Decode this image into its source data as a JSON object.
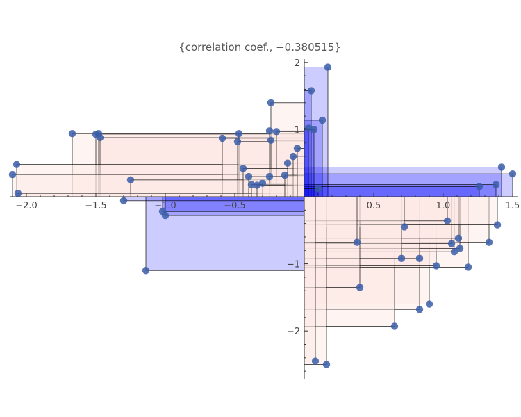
{
  "chart_data": {
    "type": "scatter",
    "title": "{correlation coef., −0.380515}",
    "xlabel": "",
    "ylabel": "",
    "xlim": [
      -2.15,
      1.52
    ],
    "ylim": [
      -2.72,
      2.05
    ],
    "grid": false,
    "x_ticks": [
      {
        "value": -2.0,
        "label": "−2.0"
      },
      {
        "value": -1.5,
        "label": "−1.5"
      },
      {
        "value": -1.0,
        "label": "−1.0"
      },
      {
        "value": -0.5,
        "label": "−0.5"
      },
      {
        "value": 0.5,
        "label": "0.5"
      },
      {
        "value": 1.0,
        "label": "1.0"
      },
      {
        "value": 1.5,
        "label": "1.5"
      }
    ],
    "y_ticks": [
      {
        "value": -2,
        "label": "−2"
      },
      {
        "value": -1,
        "label": "−1"
      },
      {
        "value": 1,
        "label": "1"
      },
      {
        "value": 2,
        "label": "2"
      }
    ],
    "point_color": "#3a5da8",
    "rect_positive_product_color": "#0000ff",
    "rect_negative_product_color": "#fde8e4",
    "points": [
      {
        "x": -2.1,
        "y": 0.33
      },
      {
        "x": -2.07,
        "y": 0.48
      },
      {
        "x": -2.06,
        "y": 0.05
      },
      {
        "x": -1.67,
        "y": 0.94
      },
      {
        "x": -1.5,
        "y": 0.93
      },
      {
        "x": -1.48,
        "y": 0.94
      },
      {
        "x": -1.47,
        "y": 0.88
      },
      {
        "x": -1.3,
        "y": -0.06
      },
      {
        "x": -1.25,
        "y": 0.25
      },
      {
        "x": -0.59,
        "y": 0.87
      },
      {
        "x": -0.47,
        "y": 0.94
      },
      {
        "x": -0.48,
        "y": 0.82
      },
      {
        "x": -0.44,
        "y": 0.42
      },
      {
        "x": -0.4,
        "y": 0.3
      },
      {
        "x": -0.38,
        "y": 0.18
      },
      {
        "x": -0.34,
        "y": 0.17
      },
      {
        "x": -0.3,
        "y": 0.2
      },
      {
        "x": -0.25,
        "y": 0.3
      },
      {
        "x": -0.24,
        "y": 1.4
      },
      {
        "x": -0.25,
        "y": 0.98
      },
      {
        "x": -0.24,
        "y": 0.84
      },
      {
        "x": -0.2,
        "y": 0.97
      },
      {
        "x": -0.14,
        "y": 0.32
      },
      {
        "x": -0.12,
        "y": 0.5
      },
      {
        "x": -0.08,
        "y": 0.6
      },
      {
        "x": -0.05,
        "y": 0.72
      },
      {
        "x": 0.03,
        "y": 1.02
      },
      {
        "x": 0.05,
        "y": 1.58
      },
      {
        "x": 0.07,
        "y": 1.0
      },
      {
        "x": 0.1,
        "y": 0.12
      },
      {
        "x": 0.13,
        "y": 1.14
      },
      {
        "x": 0.17,
        "y": 1.93
      },
      {
        "x": 1.26,
        "y": 0.15
      },
      {
        "x": 1.38,
        "y": 0.18
      },
      {
        "x": 1.42,
        "y": 0.44
      },
      {
        "x": 1.5,
        "y": 0.34
      },
      {
        "x": -1.02,
        "y": -0.22
      },
      {
        "x": -1.0,
        "y": -0.28
      },
      {
        "x": -1.14,
        "y": -1.1
      },
      {
        "x": 0.08,
        "y": -2.45
      },
      {
        "x": 0.16,
        "y": -2.5
      },
      {
        "x": 0.4,
        "y": -1.35
      },
      {
        "x": 0.38,
        "y": -0.68
      },
      {
        "x": 0.65,
        "y": -1.93
      },
      {
        "x": 0.7,
        "y": -0.92
      },
      {
        "x": 0.72,
        "y": -0.45
      },
      {
        "x": 0.83,
        "y": -0.92
      },
      {
        "x": 0.83,
        "y": -1.68
      },
      {
        "x": 0.9,
        "y": -1.6
      },
      {
        "x": 0.95,
        "y": -1.03
      },
      {
        "x": 1.03,
        "y": -0.36
      },
      {
        "x": 1.06,
        "y": -0.7
      },
      {
        "x": 1.08,
        "y": -0.82
      },
      {
        "x": 1.11,
        "y": -0.62
      },
      {
        "x": 1.12,
        "y": -0.77
      },
      {
        "x": 1.18,
        "y": -1.05
      },
      {
        "x": 1.33,
        "y": -0.68
      },
      {
        "x": 1.39,
        "y": -0.42
      }
    ]
  }
}
